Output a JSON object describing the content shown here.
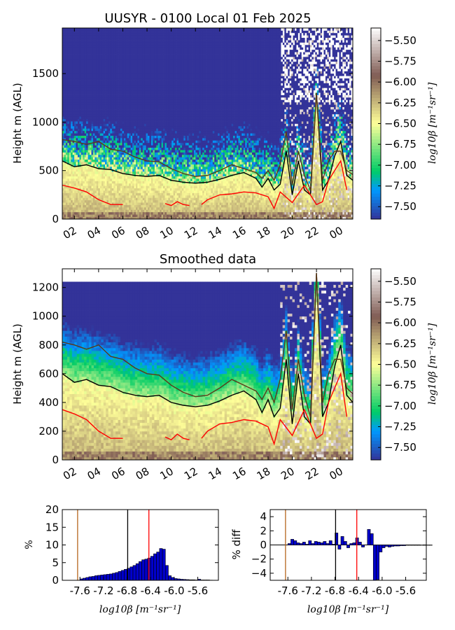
{
  "chart_data": [
    {
      "type": "heatmap",
      "title": "UUSYR - 0100 Local 01 Feb 2025",
      "ylabel": "Height m (AGL)",
      "xlabel": "",
      "x_ticks": [
        "02",
        "04",
        "06",
        "08",
        "10",
        "12",
        "14",
        "16",
        "18",
        "20",
        "22",
        "00"
      ],
      "x_tick_hours": [
        2,
        4,
        6,
        8,
        10,
        12,
        14,
        16,
        18,
        20,
        22,
        24
      ],
      "xlim_hours": [
        1,
        25
      ],
      "y_ticks": [
        "0",
        "500",
        "1000",
        "1500"
      ],
      "y_tick_values": [
        0,
        500,
        1000,
        1500
      ],
      "ylim": [
        0,
        1970
      ],
      "grid": false,
      "colorbar": {
        "label": "log10β [m⁻¹sr⁻¹]",
        "ticks": [
          "−5.50",
          "−5.75",
          "−6.00",
          "−6.25",
          "−6.50",
          "−6.75",
          "−7.00",
          "−7.25",
          "−7.50"
        ],
        "tick_values": [
          -5.5,
          -5.75,
          -6.0,
          -6.25,
          -6.5,
          -6.75,
          -7.0,
          -7.25,
          -7.5
        ],
        "range": [
          -7.65,
          -5.35
        ]
      },
      "lines": [
        {
          "color": "#000000",
          "x": [
            1,
            2,
            3,
            4,
            5,
            6,
            7,
            8,
            9,
            10,
            11,
            12,
            13,
            14,
            15,
            16,
            17,
            17.5,
            18,
            18.5,
            19,
            19.5,
            20,
            20.5,
            21,
            21.5,
            22,
            22.5,
            23,
            23.5,
            24,
            24.5,
            25
          ],
          "y": [
            600,
            540,
            560,
            520,
            510,
            470,
            450,
            440,
            450,
            400,
            380,
            370,
            380,
            410,
            450,
            480,
            420,
            330,
            420,
            300,
            360,
            700,
            250,
            600,
            300,
            250,
            1300,
            300,
            400,
            650,
            800,
            450,
            400
          ]
        },
        {
          "color": "#5a3a1a",
          "x": [
            1,
            2,
            3,
            4,
            5,
            6,
            7,
            8,
            9,
            10,
            11,
            12,
            13,
            14,
            15,
            16,
            17,
            17.5,
            18,
            18.5,
            19,
            19.5,
            20,
            20.5,
            21,
            21.5,
            22,
            22.5,
            23,
            23.5,
            24,
            24.5,
            25
          ],
          "y": [
            820,
            800,
            770,
            800,
            720,
            700,
            640,
            600,
            590,
            520,
            470,
            440,
            450,
            500,
            560,
            520,
            480,
            420,
            500,
            400,
            560,
            900,
            350,
            700,
            450,
            300,
            1300,
            400,
            600,
            700,
            700,
            500,
            460
          ]
        },
        {
          "color": "#ff0000",
          "x": [
            1,
            2,
            3,
            4,
            5,
            6
          ],
          "y": [
            350,
            320,
            280,
            200,
            150,
            150
          ]
        },
        {
          "color": "#ff0000",
          "x": [
            9.5,
            10,
            10.5,
            11,
            11.5
          ],
          "y": [
            160,
            140,
            180,
            150,
            140
          ]
        },
        {
          "color": "#ff0000",
          "x": [
            12.5,
            13,
            14,
            15,
            16,
            17,
            18,
            18.5,
            19,
            20,
            21,
            22,
            22.5,
            23,
            24,
            24.5
          ],
          "y": [
            150,
            200,
            250,
            260,
            280,
            270,
            230,
            110,
            280,
            170,
            350,
            150,
            180,
            400,
            600,
            300
          ]
        }
      ]
    },
    {
      "type": "heatmap",
      "title": "Smoothed data",
      "ylabel": "Height m (AGL)",
      "xlabel": "",
      "x_ticks": [
        "02",
        "04",
        "06",
        "08",
        "10",
        "12",
        "14",
        "16",
        "18",
        "20",
        "22",
        "00"
      ],
      "x_tick_hours": [
        2,
        4,
        6,
        8,
        10,
        12,
        14,
        16,
        18,
        20,
        22,
        24
      ],
      "xlim_hours": [
        1,
        25
      ],
      "y_ticks": [
        "0",
        "200",
        "400",
        "600",
        "800",
        "1000",
        "1200"
      ],
      "y_tick_values": [
        0,
        200,
        400,
        600,
        800,
        1000,
        1200
      ],
      "ylim": [
        0,
        1330
      ],
      "data_top": 1240,
      "grid": false,
      "colorbar": {
        "label": "log10β [m⁻¹sr⁻¹]",
        "ticks": [
          "−5.50",
          "−5.75",
          "−6.00",
          "−6.25",
          "−6.50",
          "−6.75",
          "−7.00",
          "−7.25",
          "−7.50"
        ],
        "tick_values": [
          -5.5,
          -5.75,
          -6.0,
          -6.25,
          -6.5,
          -6.75,
          -7.0,
          -7.25,
          -7.5
        ],
        "range": [
          -7.65,
          -5.35
        ]
      },
      "lines": [
        {
          "color": "#000000",
          "x": [
            1,
            2,
            3,
            4,
            5,
            6,
            7,
            8,
            9,
            10,
            11,
            12,
            13,
            14,
            15,
            16,
            17,
            17.5,
            18,
            18.5,
            19,
            19.5,
            20,
            20.5,
            21,
            21.5,
            22,
            22.5,
            23,
            23.5,
            24,
            24.5,
            25
          ],
          "y": [
            600,
            540,
            560,
            520,
            510,
            470,
            450,
            440,
            450,
            400,
            380,
            370,
            380,
            410,
            450,
            480,
            420,
            330,
            420,
            300,
            360,
            700,
            250,
            600,
            300,
            250,
            1300,
            300,
            400,
            650,
            800,
            450,
            400
          ]
        },
        {
          "color": "#5a3a1a",
          "x": [
            1,
            2,
            3,
            4,
            5,
            6,
            7,
            8,
            9,
            10,
            11,
            12,
            13,
            14,
            15,
            16,
            17,
            17.5,
            18,
            18.5,
            19,
            19.5,
            20,
            20.5,
            21,
            21.5,
            22,
            22.5,
            23,
            23.5,
            24,
            24.5,
            25
          ],
          "y": [
            820,
            800,
            770,
            800,
            720,
            700,
            640,
            600,
            590,
            520,
            470,
            440,
            450,
            500,
            560,
            520,
            480,
            420,
            500,
            400,
            560,
            900,
            350,
            700,
            450,
            300,
            1300,
            400,
            600,
            700,
            700,
            500,
            460
          ]
        },
        {
          "color": "#ff0000",
          "x": [
            1,
            2,
            3,
            4,
            5,
            6
          ],
          "y": [
            350,
            320,
            280,
            200,
            150,
            150
          ]
        },
        {
          "color": "#ff0000",
          "x": [
            9.5,
            10,
            10.5,
            11,
            11.5
          ],
          "y": [
            160,
            140,
            180,
            150,
            140
          ]
        },
        {
          "color": "#ff0000",
          "x": [
            12.5,
            13,
            14,
            15,
            16,
            17,
            18,
            18.5,
            19,
            20,
            21,
            22,
            22.5,
            23,
            24,
            24.5
          ],
          "y": [
            150,
            200,
            250,
            260,
            280,
            270,
            230,
            110,
            280,
            170,
            350,
            150,
            180,
            400,
            600,
            300
          ]
        }
      ]
    },
    {
      "type": "bar",
      "xlabel": "log10β [m⁻¹sr⁻¹]",
      "ylabel": "%",
      "x_ticks": [
        "-7.6",
        "-7.2",
        "-6.8",
        "-6.4",
        "-6.0",
        "-5.6"
      ],
      "x_tick_values": [
        -7.6,
        -7.2,
        -6.8,
        -6.4,
        -6.0,
        -5.6
      ],
      "xlim": [
        -7.9,
        -5.25
      ],
      "y_ticks": [
        "0",
        "5",
        "10",
        "15",
        "20"
      ],
      "y_tick_values": [
        0,
        5,
        10,
        15,
        20
      ],
      "ylim": [
        0,
        20
      ],
      "bin_width": 0.05,
      "bins_start": -7.6,
      "values": [
        0.4,
        0.6,
        0.8,
        1.0,
        1.1,
        1.3,
        1.4,
        1.5,
        1.6,
        1.7,
        1.8,
        2.0,
        2.2,
        2.5,
        2.8,
        3.1,
        3.4,
        3.8,
        4.2,
        4.7,
        5.3,
        5.8,
        6.0,
        6.3,
        6.8,
        7.5,
        8.0,
        9.0,
        8.8,
        4.2,
        1.3,
        0.8,
        0.5,
        0.4,
        0.3,
        0.25,
        0.2,
        0.15,
        0.15,
        0.1,
        0.3,
        0.1,
        0.1,
        0.1,
        0.05
      ],
      "vlines": [
        {
          "x": -7.64,
          "color": "#b5651d"
        },
        {
          "x": -6.79,
          "color": "#000000"
        },
        {
          "x": -6.43,
          "color": "#ff0000"
        }
      ]
    },
    {
      "type": "bar",
      "xlabel": "log10β [m⁻¹sr⁻¹]",
      "ylabel": "% diff",
      "x_ticks": [
        "-7.6",
        "-7.2",
        "-6.8",
        "-6.4",
        "-6.0",
        "-5.6"
      ],
      "x_tick_values": [
        -7.6,
        -7.2,
        -6.8,
        -6.4,
        -6.0,
        -5.6
      ],
      "xlim": [
        -7.9,
        -5.25
      ],
      "y_ticks": [
        "4",
        "2",
        "0",
        "−2",
        "−4"
      ],
      "y_tick_values": [
        4,
        2,
        0,
        -2,
        -4
      ],
      "ylim": [
        -5,
        5
      ],
      "bin_width": 0.05,
      "bins_start": -7.8,
      "values": [
        0.0,
        0.0,
        0.0,
        0.0,
        0.2,
        0.8,
        0.6,
        0.3,
        0.2,
        0.4,
        0.1,
        0.6,
        0.2,
        0.5,
        0.4,
        0.3,
        0.5,
        0.2,
        0.6,
        0.1,
        1.7,
        -0.6,
        1.2,
        0.5,
        -0.4,
        0.2,
        0.3,
        1.0,
        0.4,
        -0.3,
        0.0,
        2.2,
        1.6,
        -5.0,
        -4.9,
        -1.0,
        -0.4,
        -0.2,
        -0.3,
        -0.2,
        -0.15,
        -0.15,
        -0.1,
        -0.1,
        -0.05,
        -0.05,
        -0.05,
        -0.05,
        -0.05,
        -0.05,
        -0.05,
        -0.05,
        -0.05
      ],
      "vlines": [
        {
          "x": -7.64,
          "color": "#b5651d"
        },
        {
          "x": -6.79,
          "color": "#000000"
        },
        {
          "x": -6.43,
          "color": "#ff0000"
        }
      ]
    }
  ]
}
